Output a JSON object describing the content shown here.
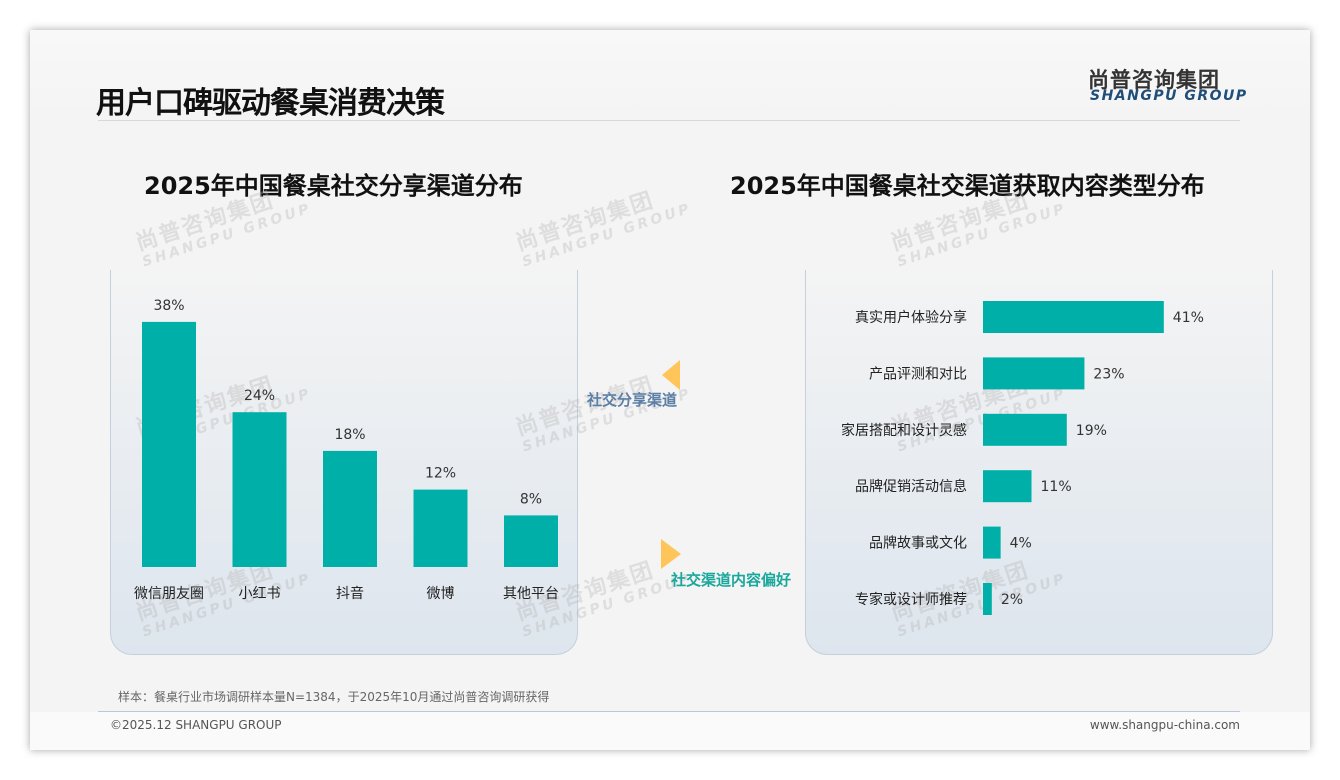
{
  "header": {
    "title": "用户口碑驱动餐桌消费决策",
    "logo_cn": "尚普咨询集团",
    "logo_en": "SHANGPU GROUP"
  },
  "watermark": {
    "cn": "尚普咨询集团",
    "en": "SHANGPU GROUP"
  },
  "labels": {
    "left_arrow": "社交分享渠道",
    "right_arrow": "社交渠道内容偏好"
  },
  "colors": {
    "bar": "#00b0a8",
    "arrow": "#ffc55a",
    "left_label": "#5b7fa6",
    "right_label": "#1aa79c"
  },
  "chart_data": [
    {
      "type": "bar",
      "title": "2025年中国餐桌社交分享渠道分布",
      "categories": [
        "微信朋友圈",
        "小红书",
        "抖音",
        "微博",
        "其他平台"
      ],
      "values": [
        38,
        24,
        18,
        12,
        8
      ],
      "unit": "%",
      "ylim": [
        0,
        40
      ]
    },
    {
      "type": "bar",
      "orientation": "horizontal",
      "title": "2025年中国餐桌社交渠道获取内容类型分布",
      "categories": [
        "真实用户体验分享",
        "产品评测和对比",
        "家居搭配和设计灵感",
        "品牌促销活动信息",
        "品牌故事或文化",
        "专家或设计师推荐"
      ],
      "values": [
        41,
        23,
        19,
        11,
        4,
        2
      ],
      "unit": "%",
      "xlim": [
        0,
        45
      ]
    }
  ],
  "footer": {
    "note": "样本：餐桌行业市场调研样本量N=1384，于2025年10月通过尚普咨询调研获得",
    "copyright": "©2025.12 SHANGPU GROUP",
    "website": "www.shangpu-china.com"
  }
}
